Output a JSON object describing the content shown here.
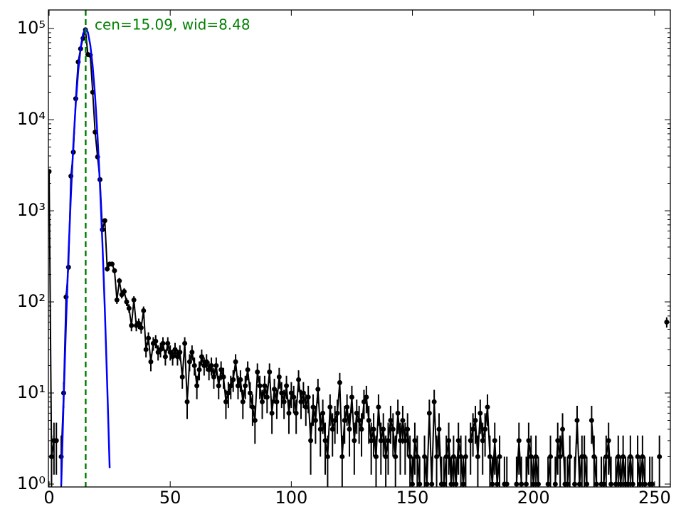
{
  "chart_data": {
    "type": "line",
    "yscale": "log",
    "grid": false,
    "annotation": "cen=15.09, wid=8.48",
    "annotation_color": "#008000",
    "vline": 15.09,
    "vline_color": "#008000",
    "xlim": [
      -0.3,
      256.5
    ],
    "ylim": [
      0.93,
      160000
    ],
    "xticks": [
      0,
      50,
      100,
      150,
      200,
      250
    ],
    "yticks": [
      {
        "value": 1,
        "label": "10⁰"
      },
      {
        "value": 10,
        "label": "10¹"
      },
      {
        "value": 100,
        "label": "10²"
      },
      {
        "value": 1000,
        "label": "10³"
      },
      {
        "value": 10000,
        "label": "10⁴"
      },
      {
        "value": 100000,
        "label": "10⁵"
      }
    ],
    "series": [
      {
        "color": "#000000",
        "errorbars": true,
        "markers": true,
        "x": [
          0,
          1,
          2,
          3,
          4,
          5,
          6,
          7,
          8,
          9,
          10,
          11,
          12,
          13,
          14,
          15,
          16,
          17,
          18,
          19,
          20,
          21,
          22,
          23,
          24,
          25,
          26,
          27,
          28,
          29,
          30,
          31,
          32,
          33,
          34,
          35,
          36,
          37,
          38,
          39,
          40,
          41,
          42,
          43,
          44,
          45,
          46,
          47,
          48,
          49,
          50,
          51,
          52,
          53,
          54,
          55,
          56,
          57,
          58,
          59,
          60,
          61,
          62,
          63,
          64,
          65,
          66,
          67,
          68,
          69,
          70,
          71,
          72,
          73,
          74,
          75,
          76,
          77,
          78,
          79,
          80,
          81,
          82,
          83,
          84,
          85,
          86,
          87,
          88,
          89,
          90,
          91,
          92,
          93,
          94,
          95,
          96,
          97,
          98,
          99,
          100,
          101,
          102,
          103,
          104,
          105,
          106,
          107,
          108,
          109,
          110,
          111,
          112,
          113,
          114,
          115,
          116,
          117,
          118,
          119,
          120,
          121,
          122,
          123,
          124,
          125,
          126,
          127,
          128,
          129,
          130,
          131,
          132,
          133,
          134,
          135,
          136,
          137,
          138,
          139,
          140,
          141,
          142,
          143,
          144,
          145,
          146,
          147,
          148,
          149,
          150,
          151,
          152,
          153,
          154,
          155,
          156,
          157,
          158,
          159,
          160,
          161,
          162,
          163,
          164,
          165,
          166,
          167,
          168,
          169,
          170,
          171,
          172,
          173,
          174,
          175,
          176,
          177,
          178,
          179,
          180,
          181,
          182,
          183,
          184,
          185,
          186,
          187,
          188,
          189,
          190,
          191,
          192,
          193,
          194,
          195,
          196,
          197,
          198,
          199,
          200,
          201,
          202,
          203,
          204,
          205,
          206,
          207,
          208,
          209,
          210,
          211,
          212,
          213,
          214,
          215,
          216,
          217,
          218,
          219,
          220,
          221,
          222,
          223,
          224,
          225,
          226,
          227,
          228,
          229,
          230,
          231,
          232,
          233,
          234,
          235,
          236,
          237,
          238,
          239,
          240,
          241,
          242,
          243,
          244,
          245,
          246,
          247,
          248,
          249,
          250,
          251,
          252,
          253,
          254,
          255
        ],
        "values": [
          2700,
          2,
          3,
          3,
          null,
          2,
          10,
          113,
          240,
          2400,
          4400,
          17000,
          43000,
          60000,
          78000,
          97000,
          52000,
          51000,
          20000,
          7300,
          3900,
          2200,
          620,
          780,
          230,
          260,
          260,
          220,
          105,
          170,
          120,
          130,
          100,
          85,
          55,
          105,
          55,
          58,
          52,
          80,
          30,
          40,
          22,
          35,
          37,
          28,
          30,
          35,
          25,
          35,
          28,
          25,
          30,
          25,
          28,
          15,
          35,
          8,
          22,
          28,
          20,
          12,
          18,
          25,
          20,
          22,
          18,
          20,
          15,
          20,
          12,
          18,
          15,
          8,
          10,
          12,
          14,
          22,
          12,
          14,
          8,
          12,
          18,
          10,
          7,
          5,
          17,
          12,
          8,
          12,
          9,
          17,
          6,
          11,
          8,
          15,
          10,
          8,
          12,
          6,
          10,
          9,
          6,
          14,
          8,
          10,
          7,
          9,
          3,
          7,
          5,
          11,
          4,
          6,
          3,
          2,
          7,
          4,
          5,
          6,
          13,
          2,
          5,
          7,
          4,
          9,
          3,
          6,
          5,
          4,
          8,
          9,
          5,
          3,
          4,
          2,
          7,
          3,
          4,
          2,
          3,
          5,
          4,
          2,
          6,
          3,
          5,
          3,
          4,
          2,
          1,
          3,
          2,
          1,
          null,
          2,
          1,
          6,
          1,
          8,
          2,
          4,
          1,
          1,
          2,
          3,
          1,
          2,
          1,
          3,
          2,
          1,
          2,
          null,
          3,
          4,
          5,
          2,
          6,
          3,
          4,
          7,
          2,
          1,
          3,
          1,
          2,
          null,
          1,
          1,
          null,
          null,
          null,
          1,
          3,
          1,
          null,
          1,
          3,
          2,
          1,
          2,
          1,
          null,
          null,
          null,
          1,
          2,
          null,
          1,
          3,
          2,
          4,
          1,
          1,
          2,
          null,
          1,
          5,
          1,
          2,
          2,
          1,
          null,
          5,
          2,
          1,
          null,
          1,
          1,
          2,
          3,
          1,
          null,
          1,
          2,
          1,
          2,
          1,
          1,
          2,
          1,
          null,
          2,
          1,
          2,
          1,
          null,
          1,
          1,
          null,
          null,
          2,
          null,
          null,
          60
        ]
      },
      {
        "color": "#0000ff",
        "errorbars": false,
        "markers": false,
        "x": [
          5,
          6,
          7,
          8,
          9,
          10,
          11,
          12,
          13,
          14,
          15,
          16,
          17,
          18,
          19,
          20,
          21,
          22,
          23,
          24,
          25
        ],
        "values": [
          0.97,
          8.5,
          60,
          335,
          1490,
          5300,
          15000,
          33900,
          61000,
          87400,
          99900,
          91000,
          66000,
          38300,
          17700,
          6500,
          1900,
          447,
          83,
          12,
          1.5
        ]
      }
    ]
  }
}
